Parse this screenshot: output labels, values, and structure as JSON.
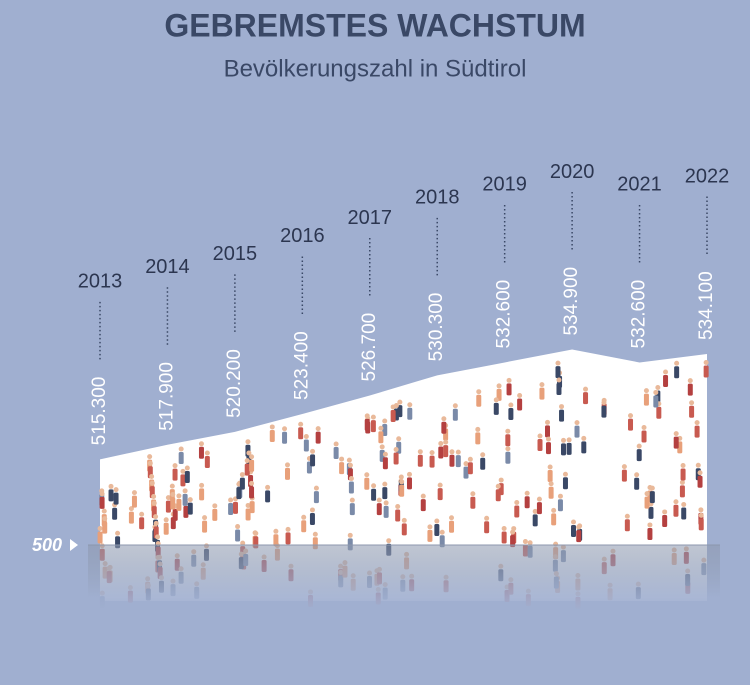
{
  "chart_data": {
    "type": "area",
    "title": "GEBREMSTES WACHSTUM",
    "subtitle": "Bevölkerungszahl in Südtirol",
    "x": [
      2013,
      2014,
      2015,
      2016,
      2017,
      2018,
      2019,
      2020,
      2021,
      2022
    ],
    "values": [
      515.3,
      517.9,
      520.2,
      523.4,
      526.7,
      530.3,
      532.6,
      534.9,
      532.6,
      534.1
    ],
    "value_labels": [
      "515.300",
      "517.900",
      "520.200",
      "523.400",
      "526.700",
      "530.300",
      "532.600",
      "534.900",
      "532.600",
      "534.100"
    ],
    "color": "#ffffff",
    "ylim": [
      490,
      540
    ],
    "yticks": [
      500
    ]
  }
}
